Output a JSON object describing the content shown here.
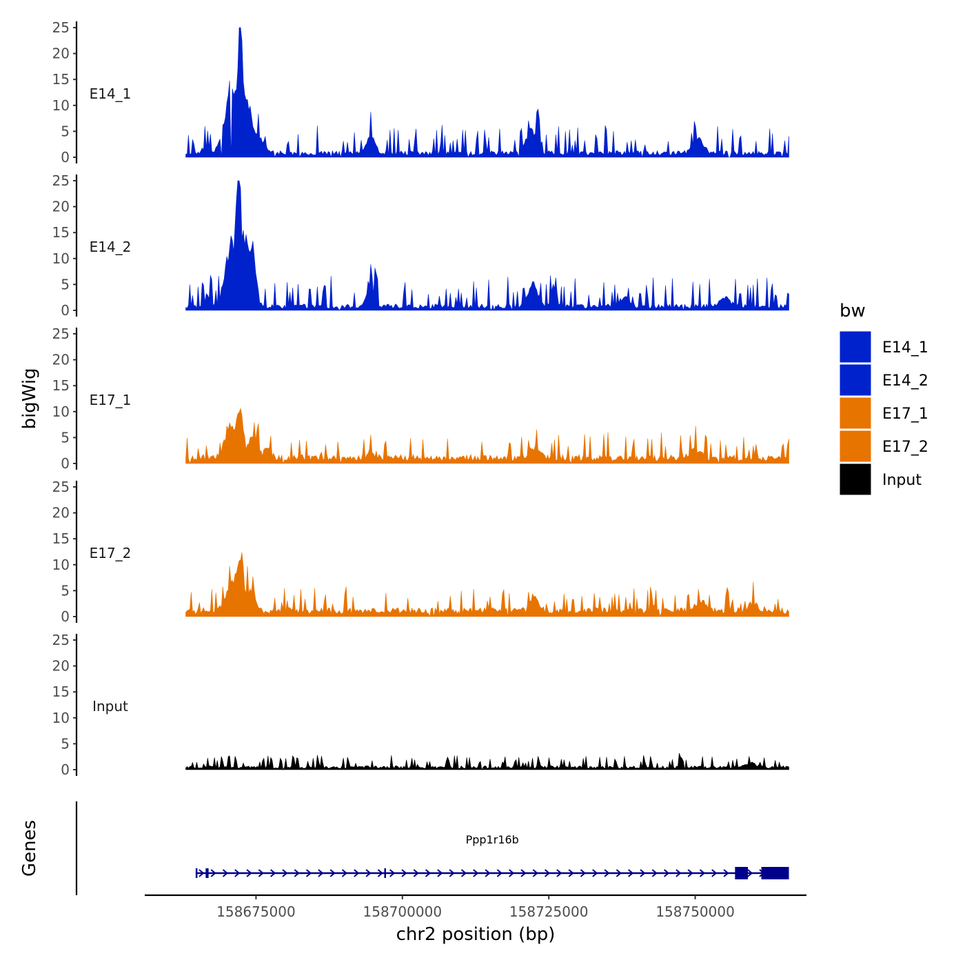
{
  "chart_data": {
    "type": "area",
    "xlabel": "chr2 position (bp)",
    "ylabel": "bigWig",
    "genes_ylabel": "Genes",
    "xlim": [
      158656000,
      158769000
    ],
    "data_x_range": [
      158663000,
      158766000
    ],
    "x_ticks": [
      {
        "value": 158675000,
        "label": "158675000"
      },
      {
        "value": 158700000,
        "label": "158700000"
      },
      {
        "value": 158725000,
        "label": "158725000"
      },
      {
        "value": 158750000,
        "label": "158750000"
      }
    ],
    "ylim": [
      0,
      25
    ],
    "y_ticks": [
      {
        "value": 0,
        "label": "0"
      },
      {
        "value": 5,
        "label": "5"
      },
      {
        "value": 10,
        "label": "10"
      },
      {
        "value": 15,
        "label": "15"
      },
      {
        "value": 20,
        "label": "20"
      },
      {
        "value": 25,
        "label": "25"
      }
    ],
    "legend": {
      "title": "bw",
      "position": "right",
      "entries": [
        {
          "label": "E14_1",
          "color": "#0022cc"
        },
        {
          "label": "E14_2",
          "color": "#0022cc"
        },
        {
          "label": "E17_1",
          "color": "#e87400"
        },
        {
          "label": "E17_2",
          "color": "#e87400"
        },
        {
          "label": "Input",
          "color": "#000000"
        }
      ]
    },
    "tracks": [
      {
        "name": "E14_1",
        "color": "#0022cc",
        "baseline": 1.0,
        "noise": 1.6,
        "seed": 11,
        "peaks": [
          {
            "x": 158666500,
            "h": 1.8,
            "w": 600
          },
          {
            "x": 158670800,
            "h": 13.5,
            "w": 1100
          },
          {
            "x": 158672300,
            "h": 24.5,
            "w": 260
          },
          {
            "x": 158673400,
            "h": 11.5,
            "w": 900
          },
          {
            "x": 158675800,
            "h": 2.5,
            "w": 900
          },
          {
            "x": 158694500,
            "h": 4.0,
            "w": 700
          },
          {
            "x": 158722000,
            "h": 5.0,
            "w": 900
          },
          {
            "x": 158723200,
            "h": 8.5,
            "w": 220
          },
          {
            "x": 158750500,
            "h": 3.5,
            "w": 900
          }
        ]
      },
      {
        "name": "E14_2",
        "color": "#0022cc",
        "baseline": 1.0,
        "noise": 1.8,
        "seed": 23,
        "peaks": [
          {
            "x": 158666800,
            "h": 2.5,
            "w": 500
          },
          {
            "x": 158670500,
            "h": 12.0,
            "w": 900
          },
          {
            "x": 158671900,
            "h": 21.5,
            "w": 300
          },
          {
            "x": 158673000,
            "h": 15.0,
            "w": 800
          },
          {
            "x": 158674600,
            "h": 10.0,
            "w": 500
          },
          {
            "x": 158694500,
            "h": 4.5,
            "w": 600
          },
          {
            "x": 158722300,
            "h": 5.0,
            "w": 800
          },
          {
            "x": 158738000,
            "h": 2.0,
            "w": 800
          },
          {
            "x": 158755000,
            "h": 2.0,
            "w": 900
          }
        ]
      },
      {
        "name": "E17_1",
        "color": "#e87400",
        "baseline": 1.4,
        "noise": 1.4,
        "seed": 37,
        "peaks": [
          {
            "x": 158670500,
            "h": 6.5,
            "w": 900
          },
          {
            "x": 158672300,
            "h": 10.5,
            "w": 500
          },
          {
            "x": 158674500,
            "h": 5.0,
            "w": 700
          },
          {
            "x": 158677000,
            "h": 2.5,
            "w": 600
          },
          {
            "x": 158694500,
            "h": 1.8,
            "w": 600
          },
          {
            "x": 158722500,
            "h": 2.5,
            "w": 800
          },
          {
            "x": 158750000,
            "h": 1.8,
            "w": 1000
          }
        ]
      },
      {
        "name": "E17_2",
        "color": "#e87400",
        "baseline": 1.4,
        "noise": 1.4,
        "seed": 51,
        "peaks": [
          {
            "x": 158670800,
            "h": 6.0,
            "w": 900
          },
          {
            "x": 158672300,
            "h": 10.0,
            "w": 450
          },
          {
            "x": 158674000,
            "h": 4.5,
            "w": 800
          },
          {
            "x": 158722600,
            "h": 3.5,
            "w": 700
          },
          {
            "x": 158751000,
            "h": 2.0,
            "w": 900
          },
          {
            "x": 158760000,
            "h": 1.5,
            "w": 900
          }
        ]
      },
      {
        "name": "Input",
        "color": "#000000",
        "baseline": 0.6,
        "noise": 0.7,
        "seed": 67,
        "peaks": [
          {
            "x": 158747600,
            "h": 3.3,
            "w": 150
          },
          {
            "x": 158759500,
            "h": 1.0,
            "w": 800
          }
        ]
      }
    ],
    "genes": [
      {
        "name": "Ppp1r16b",
        "strand": "+",
        "color": "#00008b",
        "start": 158664700,
        "end": 158766000,
        "exons": [
          {
            "start": 158664700,
            "end": 158664950
          },
          {
            "start": 158666400,
            "end": 158666900
          },
          {
            "start": 158696900,
            "end": 158697100
          },
          {
            "start": 158756800,
            "end": 158759000
          },
          {
            "start": 158761300,
            "end": 158766000
          }
        ]
      }
    ]
  }
}
